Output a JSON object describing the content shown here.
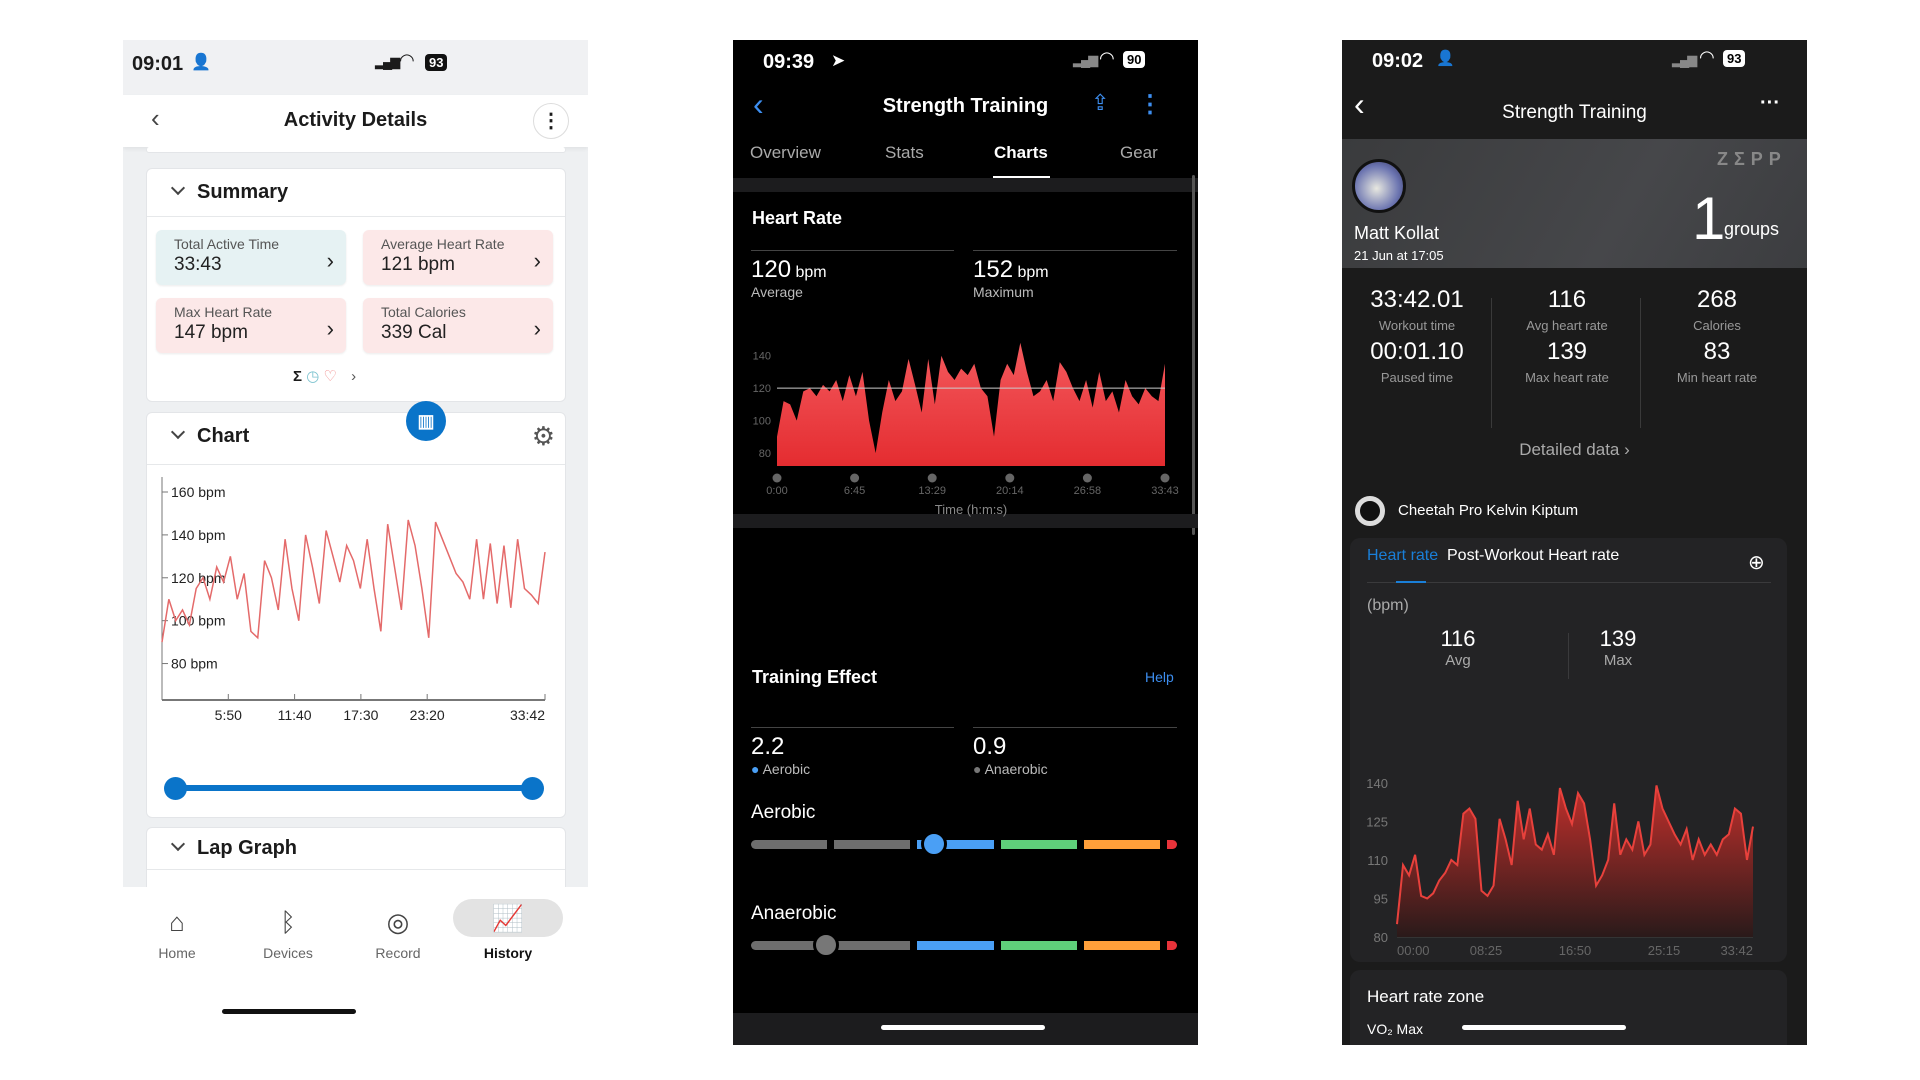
{
  "phone1": {
    "status": {
      "time": "09:01",
      "battery": "93"
    },
    "header": {
      "title": "Activity Details"
    },
    "summary": {
      "title": "Summary",
      "tiles": [
        {
          "label": "Total Active Time",
          "value": "33:43",
          "color": "#e6f2f3"
        },
        {
          "label": "Average Heart Rate",
          "value": "121 bpm",
          "color": "#fce8e8"
        },
        {
          "label": "Max Heart Rate",
          "value": "147 bpm",
          "color": "#fce8e8"
        },
        {
          "label": "Total Calories",
          "value": "339 Cal",
          "color": "#fce8e8"
        }
      ],
      "icons": [
        "sigma-icon",
        "clock-icon",
        "heart-icon",
        "chevron-right-icon"
      ]
    },
    "chart": {
      "title": "Chart"
    },
    "lap_graph": {
      "title": "Lap Graph"
    },
    "nav": [
      {
        "label": "Home",
        "icon": "home-icon"
      },
      {
        "label": "Devices",
        "icon": "bluetooth-icon"
      },
      {
        "label": "Record",
        "icon": "record-icon"
      },
      {
        "label": "History",
        "icon": "history-chart-icon",
        "active": true
      }
    ],
    "accent": "#0a74c9"
  },
  "phone2": {
    "status": {
      "time": "09:39",
      "battery": "90"
    },
    "header": {
      "title": "Strength Training"
    },
    "tabs": [
      "Overview",
      "Stats",
      "Charts",
      "Gear"
    ],
    "active_tab": "Charts",
    "heart_rate": {
      "title": "Heart Rate",
      "avg_value": "120",
      "avg_unit": "bpm",
      "avg_label": "Average",
      "max_value": "152",
      "max_unit": "bpm",
      "max_label": "Maximum"
    },
    "training_effect": {
      "title": "Training Effect",
      "help": "Help",
      "aerobic_value": "2.2",
      "aerobic_label": "Aerobic",
      "anaerobic_value": "0.9",
      "anaerobic_label": "Anaerobic",
      "aerobic_bar_label": "Aerobic",
      "anaerobic_bar_label": "Anaerobic",
      "aerobic_level": 2.2,
      "anaerobic_level": 0.9,
      "scale_max": 5,
      "zone_colors": [
        "#6e6e6e",
        "#6e6e6e",
        "#4a9ff5",
        "#5fd07a",
        "#ff9f3a",
        "#e8333a"
      ]
    },
    "accent": "#3d8ef0"
  },
  "phone3": {
    "status": {
      "time": "09:02",
      "battery": "93"
    },
    "header": {
      "title": "Strength Training"
    },
    "banner": {
      "name": "Matt Kollat",
      "date": "21 Jun at 17:05",
      "logo": "ZΣPP",
      "count": "1",
      "count_unit": "groups"
    },
    "stats": [
      {
        "value": "33:42.01",
        "label": "Workout time"
      },
      {
        "value": "116",
        "label": "Avg heart rate"
      },
      {
        "value": "268",
        "label": "Calories"
      },
      {
        "value": "00:01.10",
        "label": "Paused time"
      },
      {
        "value": "139",
        "label": "Max heart rate"
      },
      {
        "value": "83",
        "label": "Min heart rate"
      }
    ],
    "detailed": "Detailed data",
    "device": "Cheetah Pro Kelvin Kiptum",
    "hr_tabs": [
      "Heart rate",
      "Post-Workout Heart rate"
    ],
    "unit": "(bpm)",
    "avg": "116",
    "avg_label": "Avg",
    "max": "139",
    "max_label": "Max",
    "zone_title": "Heart rate zone",
    "vo2": "VO₂ Max",
    "accent": "#1a7fd8"
  },
  "chart_data": [
    {
      "type": "line",
      "x_start": "0:00",
      "x_end": "33:42",
      "ylim": [
        63,
        167
      ],
      "color": "#e46a6a",
      "yticks": [
        {
          "v": 160,
          "label": "160 bpm"
        },
        {
          "v": 140,
          "label": "140 bpm"
        },
        {
          "v": 120,
          "label": "120 bpm"
        },
        {
          "v": 100,
          "label": "100 bpm"
        },
        {
          "v": 80,
          "label": "80 bpm"
        }
      ],
      "xticks": [
        {
          "s": 350,
          "label": "5:50"
        },
        {
          "s": 700,
          "label": "11:40"
        },
        {
          "s": 1050,
          "label": "17:30"
        },
        {
          "s": 1400,
          "label": "23:20"
        },
        {
          "s": 2022,
          "label": "33:42"
        }
      ],
      "values": [
        90,
        110,
        100,
        105,
        98,
        115,
        120,
        110,
        125,
        118,
        130,
        110,
        122,
        95,
        92,
        128,
        120,
        105,
        138,
        115,
        100,
        140,
        125,
        108,
        142,
        130,
        118,
        135,
        128,
        115,
        138,
        115,
        95,
        145,
        125,
        105,
        147,
        135,
        115,
        92,
        146,
        138,
        130,
        122,
        118,
        110,
        138,
        110,
        136,
        108,
        135,
        106,
        138,
        115,
        112,
        108,
        132
      ]
    },
    {
      "type": "area",
      "x_start": "0:00",
      "x_end": "33:43",
      "ylim": [
        72,
        162
      ],
      "color": "#f0484d",
      "avg_line": 120,
      "xlabel": "Time (h:m:s)",
      "yticks": [
        140,
        120,
        100,
        80
      ],
      "xticks": [
        "0:00",
        "6:45",
        "13:29",
        "20:14",
        "26:58",
        "33:43"
      ],
      "values": [
        90,
        112,
        110,
        100,
        118,
        120,
        115,
        122,
        118,
        125,
        112,
        128,
        115,
        130,
        100,
        80,
        105,
        125,
        112,
        118,
        138,
        122,
        105,
        138,
        110,
        140,
        130,
        125,
        132,
        128,
        135,
        120,
        115,
        90,
        125,
        135,
        128,
        148,
        130,
        115,
        118,
        125,
        112,
        136,
        130,
        120,
        112,
        125,
        108,
        130,
        112,
        118,
        105,
        125,
        115,
        110,
        120,
        115,
        112,
        135
      ]
    },
    {
      "type": "area",
      "x_start": "00:00",
      "x_end": "33:42",
      "ylim": [
        80,
        145
      ],
      "color": "#e8413c",
      "yticks": [
        140,
        125,
        110,
        95,
        80
      ],
      "xticks": [
        "00:00",
        "08:25",
        "16:50",
        "25:15",
        "33:42"
      ],
      "values": [
        85,
        108,
        104,
        112,
        96,
        95,
        97,
        102,
        105,
        110,
        108,
        128,
        130,
        126,
        98,
        96,
        100,
        126,
        118,
        108,
        133,
        118,
        130,
        116,
        114,
        120,
        112,
        138,
        130,
        124,
        136,
        132,
        118,
        100,
        104,
        110,
        132,
        112,
        118,
        114,
        125,
        112,
        116,
        139,
        130,
        125,
        120,
        116,
        122,
        110,
        118,
        112,
        116,
        112,
        118,
        120,
        130,
        128,
        110,
        123
      ]
    }
  ]
}
